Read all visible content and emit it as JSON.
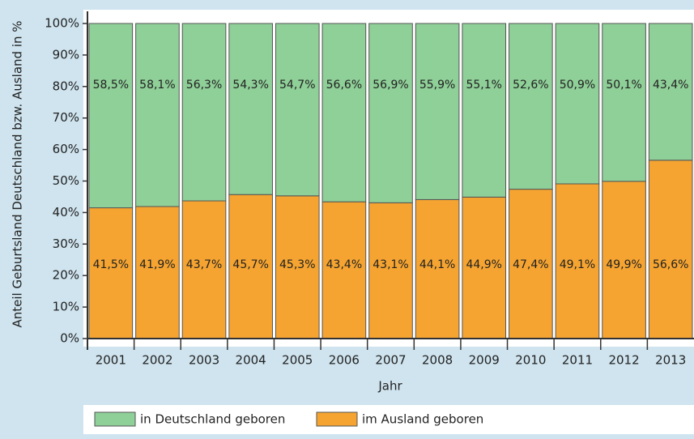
{
  "chart_data": {
    "type": "stacked_bar",
    "y_label": "Anteil Geburtsland Deutschland bzw. Ausland in %",
    "x_label": "Jahr",
    "categories": [
      "2001",
      "2002",
      "2003",
      "2004",
      "2005",
      "2006",
      "2007",
      "2008",
      "2009",
      "2010",
      "2011",
      "2012",
      "2013"
    ],
    "series": [
      {
        "name": "in Deutschland geboren",
        "color": "#8fcf98",
        "values": [
          58.5,
          58.1,
          56.3,
          54.3,
          54.7,
          56.6,
          56.9,
          55.9,
          55.1,
          52.6,
          50.9,
          50.1,
          43.4
        ],
        "value_labels": [
          "58,5%",
          "58,1%",
          "56,3%",
          "54,3%",
          "54,7%",
          "56,6%",
          "56,9%",
          "55,9%",
          "55,1%",
          "52,6%",
          "50,9%",
          "50,1%",
          "43,4%"
        ]
      },
      {
        "name": "im Ausland geboren",
        "color": "#f5a431",
        "values": [
          41.5,
          41.9,
          43.7,
          45.7,
          45.3,
          43.4,
          43.1,
          44.1,
          44.9,
          47.4,
          49.1,
          49.9,
          56.6
        ],
        "value_labels": [
          "41,5%",
          "41,9%",
          "43,7%",
          "45,7%",
          "45,3%",
          "43,4%",
          "43,1%",
          "44,1%",
          "44,9%",
          "47,4%",
          "49,1%",
          "49,9%",
          "56,6%"
        ]
      }
    ],
    "ylim": [
      0,
      100
    ],
    "yticks": [
      {
        "value": 0,
        "label": "0%"
      },
      {
        "value": 10,
        "label": "10%"
      },
      {
        "value": 20,
        "label": "20%"
      },
      {
        "value": 30,
        "label": "30%"
      },
      {
        "value": 40,
        "label": "40%"
      },
      {
        "value": 50,
        "label": "50%"
      },
      {
        "value": 60,
        "label": "60%"
      },
      {
        "value": 70,
        "label": "70%"
      },
      {
        "value": 80,
        "label": "80%"
      },
      {
        "value": 90,
        "label": "90%"
      },
      {
        "value": 100,
        "label": "100%"
      }
    ]
  }
}
